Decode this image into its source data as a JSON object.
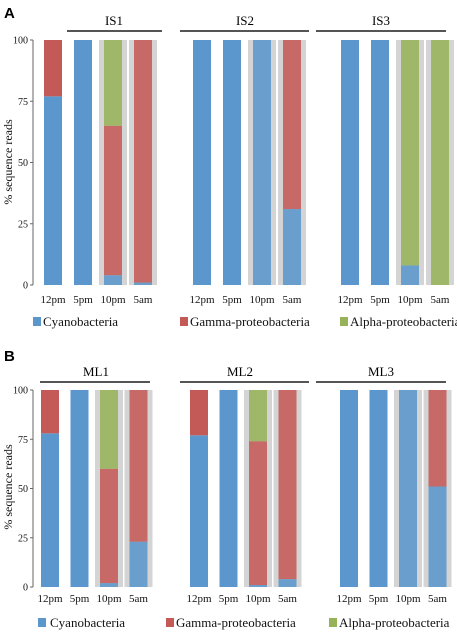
{
  "colors": {
    "Cyanobacteria": "#5b96cc",
    "Gamma-proteobacteria": "#c45a58",
    "Alpha-proteobacteria": "#97b35a",
    "night_shade": "#d4d4d4",
    "group_line": "#555555"
  },
  "chart_data": [
    {
      "panel": "A",
      "type": "bar",
      "stacked": true,
      "ylabel": "% sequence reads",
      "ylim": [
        0,
        100
      ],
      "yticks": [
        0,
        25,
        50,
        75,
        100
      ],
      "categories": [
        "12pm",
        "5pm",
        "10pm",
        "5am"
      ],
      "night_shaded": [
        "10pm",
        "5am"
      ],
      "legend": [
        "Cyanobacteria",
        "Gamma-proteobacteria",
        "Alpha-proteobacteria"
      ],
      "legend_position": "bottom",
      "groups": [
        {
          "name": "IS1",
          "series": [
            {
              "name": "Cyanobacteria",
              "values": [
                77,
                100,
                4,
                1
              ]
            },
            {
              "name": "Gamma-proteobacteria",
              "values": [
                23,
                0,
                61,
                99
              ]
            },
            {
              "name": "Alpha-proteobacteria",
              "values": [
                0,
                0,
                35,
                0
              ]
            }
          ]
        },
        {
          "name": "IS2",
          "series": [
            {
              "name": "Cyanobacteria",
              "values": [
                100,
                100,
                100,
                31
              ]
            },
            {
              "name": "Gamma-proteobacteria",
              "values": [
                0,
                0,
                0,
                69
              ]
            },
            {
              "name": "Alpha-proteobacteria",
              "values": [
                0,
                0,
                0,
                0
              ]
            }
          ]
        },
        {
          "name": "IS3",
          "series": [
            {
              "name": "Cyanobacteria",
              "values": [
                100,
                100,
                8,
                0
              ]
            },
            {
              "name": "Gamma-proteobacteria",
              "values": [
                0,
                0,
                0,
                0
              ]
            },
            {
              "name": "Alpha-proteobacteria",
              "values": [
                0,
                0,
                92,
                100
              ]
            }
          ]
        }
      ]
    },
    {
      "panel": "B",
      "type": "bar",
      "stacked": true,
      "ylabel": "% sequence reads",
      "ylim": [
        0,
        100
      ],
      "yticks": [
        0,
        25,
        50,
        75,
        100
      ],
      "categories": [
        "12pm",
        "5pm",
        "10pm",
        "5am"
      ],
      "night_shaded": [
        "10pm",
        "5am"
      ],
      "legend": [
        "Cyanobacteria",
        "Gamma-proteobacteria",
        "Alpha-proteobacteria"
      ],
      "legend_position": "bottom",
      "groups": [
        {
          "name": "ML1",
          "series": [
            {
              "name": "Cyanobacteria",
              "values": [
                78,
                100,
                2,
                23
              ]
            },
            {
              "name": "Gamma-proteobacteria",
              "values": [
                22,
                0,
                58,
                77
              ]
            },
            {
              "name": "Alpha-proteobacteria",
              "values": [
                0,
                0,
                40,
                0
              ]
            }
          ]
        },
        {
          "name": "ML2",
          "series": [
            {
              "name": "Cyanobacteria",
              "values": [
                77,
                100,
                1,
                4
              ]
            },
            {
              "name": "Gamma-proteobacteria",
              "values": [
                23,
                0,
                73,
                96
              ]
            },
            {
              "name": "Alpha-proteobacteria",
              "values": [
                0,
                0,
                26,
                0
              ]
            }
          ]
        },
        {
          "name": "ML3",
          "series": [
            {
              "name": "Cyanobacteria",
              "values": [
                100,
                100,
                100,
                51
              ]
            },
            {
              "name": "Gamma-proteobacteria",
              "values": [
                0,
                0,
                0,
                49
              ]
            },
            {
              "name": "Alpha-proteobacteria",
              "values": [
                0,
                0,
                0,
                0
              ]
            }
          ]
        }
      ]
    }
  ]
}
